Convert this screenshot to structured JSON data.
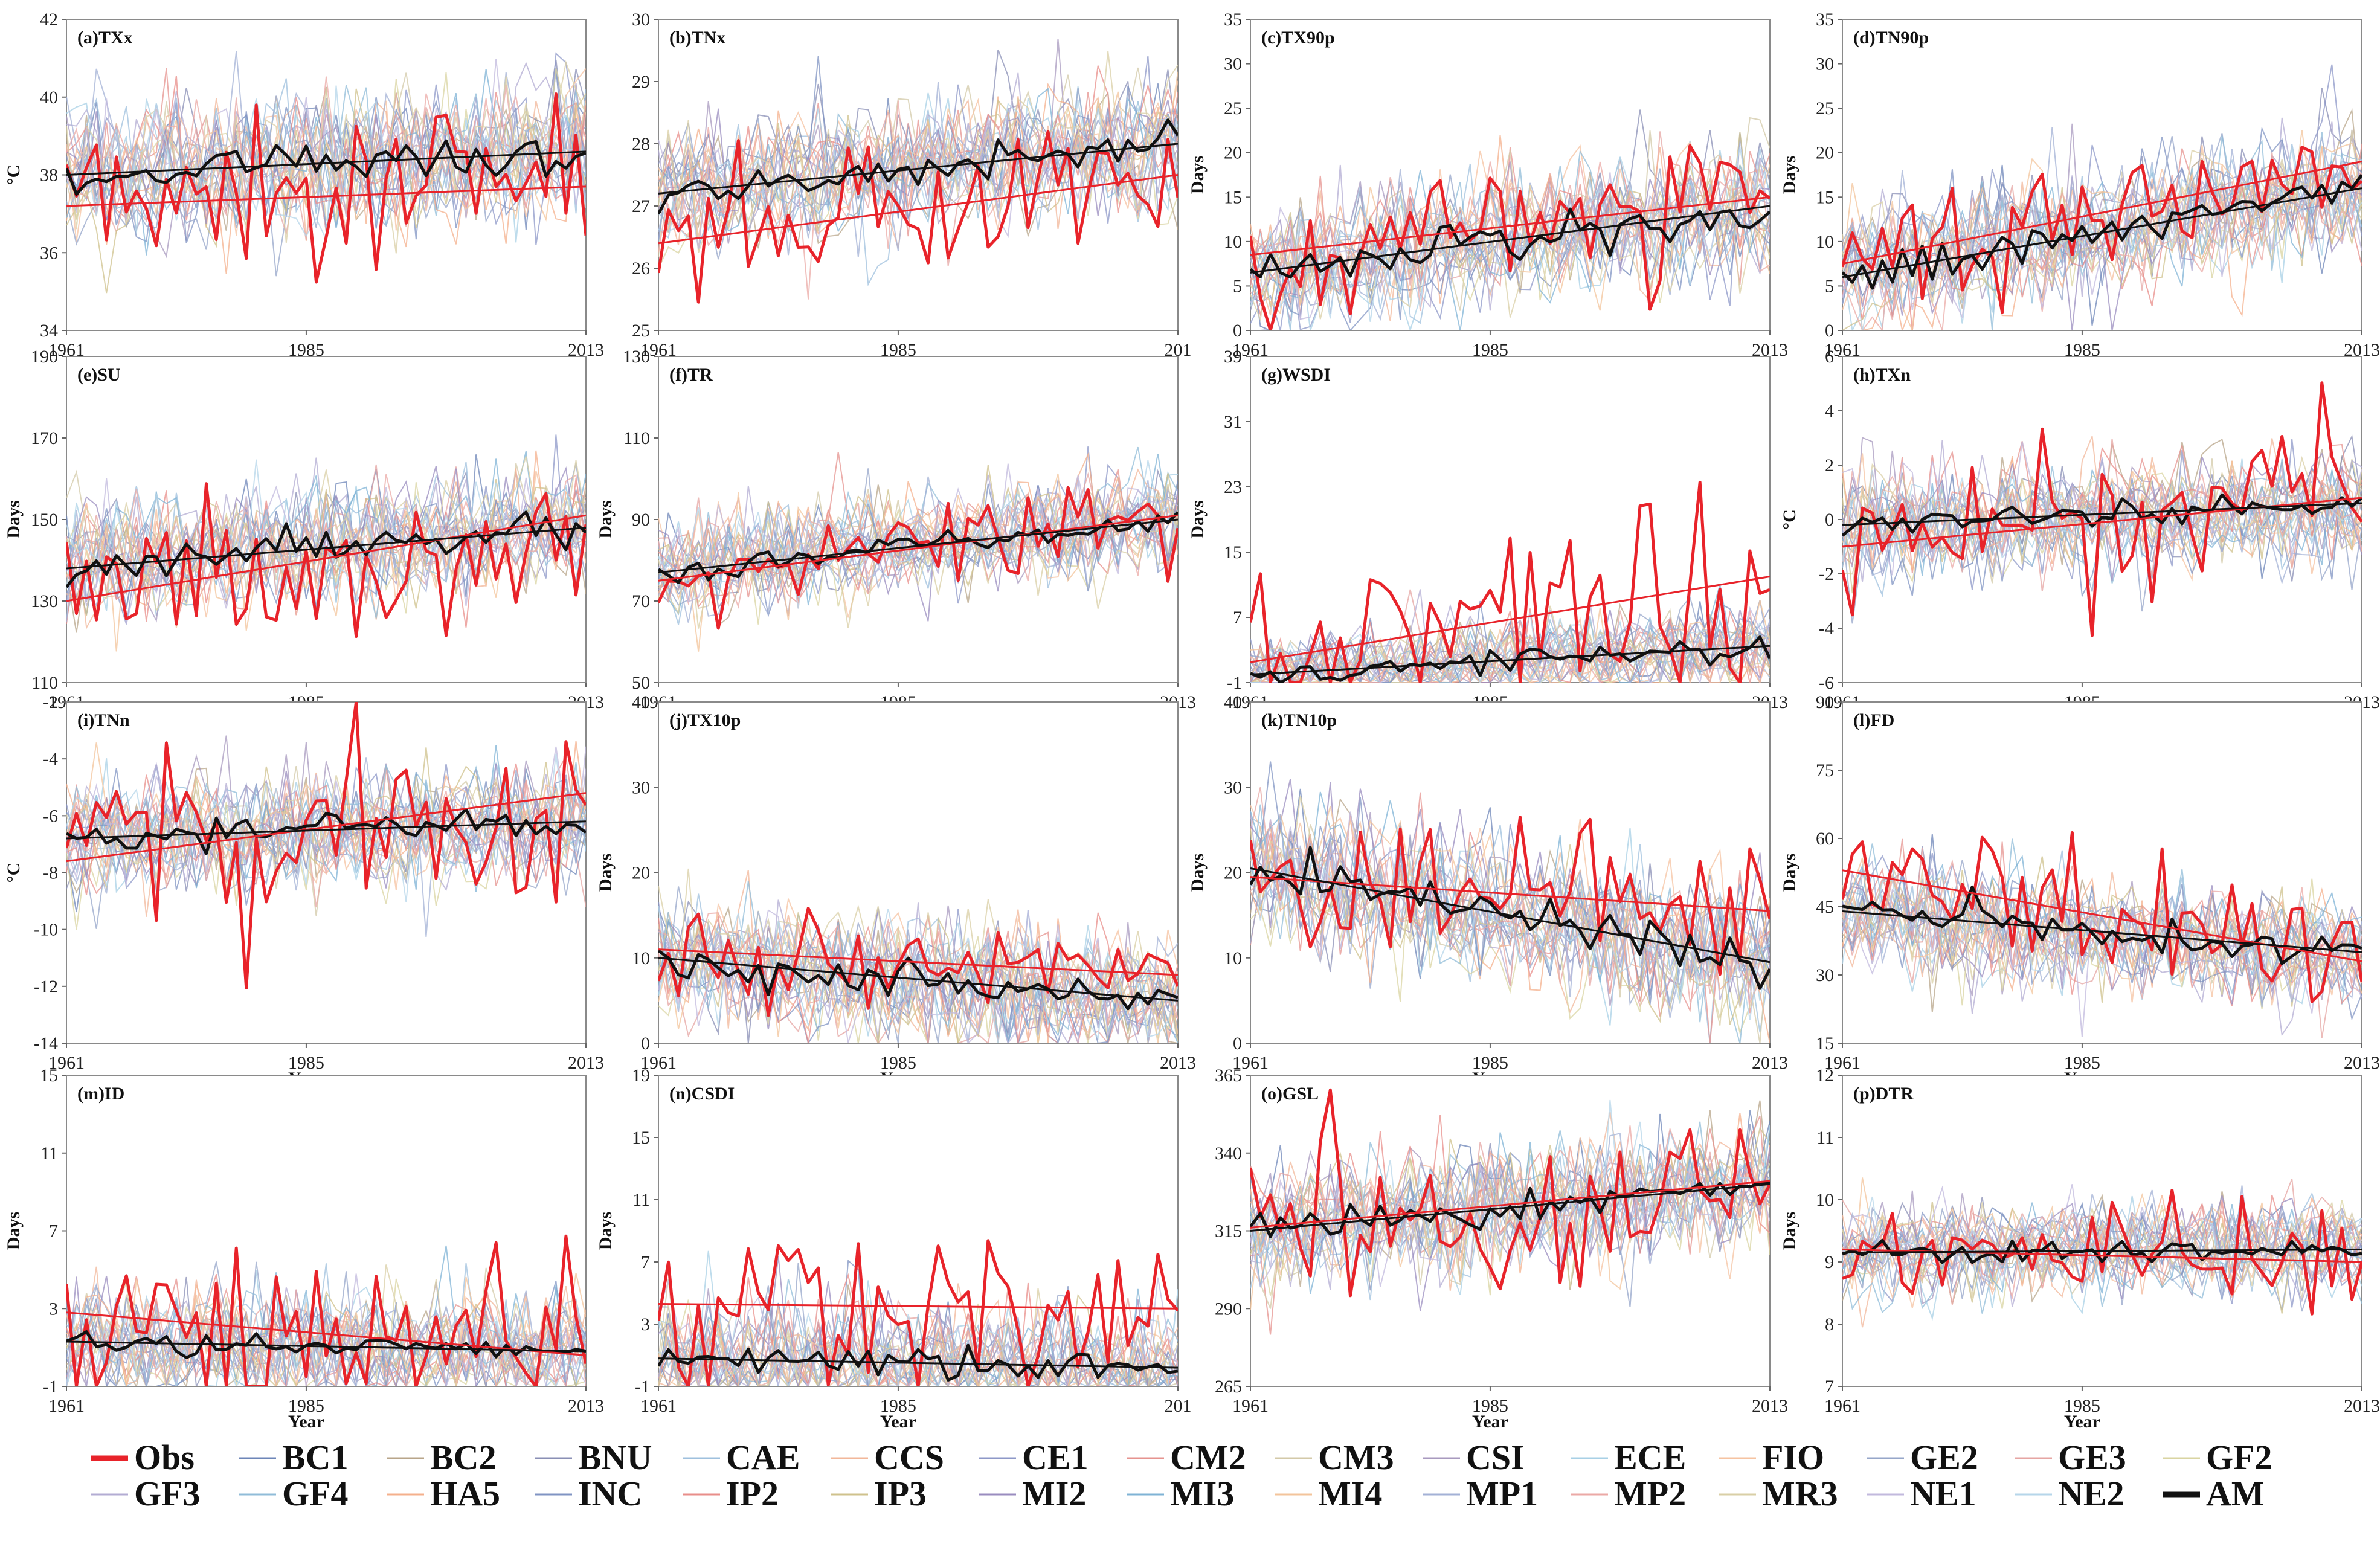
{
  "figure": {
    "x_axis_label": "Year",
    "legend": [
      {
        "name": "Obs",
        "color": "#e8232a",
        "bold": true
      },
      {
        "name": "BC1",
        "color": "#6d86b8"
      },
      {
        "name": "BC2",
        "color": "#b8a58a"
      },
      {
        "name": "BNU",
        "color": "#8a8fb5"
      },
      {
        "name": "CAE",
        "color": "#9fc0de"
      },
      {
        "name": "CCS",
        "color": "#f2b79a"
      },
      {
        "name": "CE1",
        "color": "#8e98c8"
      },
      {
        "name": "CM2",
        "color": "#e6938f"
      },
      {
        "name": "CM3",
        "color": "#d3c9a8"
      },
      {
        "name": "CSI",
        "color": "#a89abf"
      },
      {
        "name": "ECE",
        "color": "#a8d0e6"
      },
      {
        "name": "FIO",
        "color": "#f6c3a1"
      },
      {
        "name": "GE2",
        "color": "#96a6c9"
      },
      {
        "name": "GE3",
        "color": "#e6a5a3"
      },
      {
        "name": "GF2",
        "color": "#d9d4a2"
      },
      {
        "name": "GF3",
        "color": "#b3acd3"
      },
      {
        "name": "GF4",
        "color": "#90bcd8"
      },
      {
        "name": "HA5",
        "color": "#f4b08c"
      },
      {
        "name": "INC",
        "color": "#8094c3"
      },
      {
        "name": "IP2",
        "color": "#e88e8a"
      },
      {
        "name": "IP3",
        "color": "#cfc28c"
      },
      {
        "name": "MI2",
        "color": "#9a8cbf"
      },
      {
        "name": "MI3",
        "color": "#7fb3d5"
      },
      {
        "name": "MI4",
        "color": "#f3c49b"
      },
      {
        "name": "MP1",
        "color": "#a3b1d6"
      },
      {
        "name": "MP2",
        "color": "#eba9a6"
      },
      {
        "name": "MR3",
        "color": "#d9cfa6"
      },
      {
        "name": "NE1",
        "color": "#c2b9dd"
      },
      {
        "name": "NE2",
        "color": "#b6d6ea"
      },
      {
        "name": "AM",
        "color": "#111111",
        "bold": true
      }
    ]
  },
  "chart_data": [
    {
      "type": "line",
      "title": "(a)TXx",
      "ylabel": "°C",
      "ylim": [
        34,
        42
      ],
      "yticks": [
        "34",
        "36",
        "38",
        "40",
        "42"
      ],
      "xticks": [
        "1961",
        "1985",
        "2013"
      ],
      "xlim": [
        1961,
        2013
      ],
      "obs_trend": [
        37.2,
        37.7
      ],
      "am_trend": [
        38.0,
        38.6
      ],
      "obs_mean": 37.5,
      "am_mean": 38.3,
      "obs_sd": 1.0,
      "am_sd": 0.25,
      "model_sd": 0.9
    },
    {
      "type": "line",
      "title": "(b)TNx",
      "ylabel": "",
      "ylim": [
        25,
        30
      ],
      "yticks": [
        "25",
        "26",
        "27",
        "28",
        "29",
        "30"
      ],
      "xticks": [
        "1961",
        "1985",
        "201"
      ],
      "xlim": [
        1961,
        2013
      ],
      "obs_trend": [
        26.4,
        27.5
      ],
      "am_trend": [
        27.2,
        28.0
      ],
      "obs_mean": 27.0,
      "am_mean": 27.6,
      "obs_sd": 0.6,
      "am_sd": 0.15,
      "model_sd": 0.5
    },
    {
      "type": "line",
      "title": "(c)TX90p",
      "ylabel": "Days",
      "ylim": [
        0,
        35
      ],
      "yticks": [
        "0",
        "5",
        "10",
        "15",
        "20",
        "25",
        "30",
        "35"
      ],
      "xticks": [
        "1961",
        "1985",
        "2013"
      ],
      "xlim": [
        1961,
        2013
      ],
      "obs_trend": [
        8.5,
        15.0
      ],
      "am_trend": [
        6.5,
        14.0
      ],
      "obs_mean": 11.5,
      "am_mean": 10.0,
      "obs_sd": 4.0,
      "am_sd": 1.2,
      "model_sd": 3.5
    },
    {
      "type": "line",
      "title": "(d)TN90p",
      "ylabel": "Days",
      "ylim": [
        0,
        35
      ],
      "yticks": [
        "0",
        "5",
        "10",
        "15",
        "20",
        "25",
        "30",
        "35"
      ],
      "xticks": [
        "1961",
        "1985",
        "2013"
      ],
      "xlim": [
        1961,
        2013
      ],
      "obs_trend": [
        7.5,
        19.0
      ],
      "am_trend": [
        6.0,
        16.0
      ],
      "obs_mean": 13.0,
      "am_mean": 11.0,
      "obs_sd": 3.5,
      "am_sd": 1.2,
      "model_sd": 3.5
    },
    {
      "type": "line",
      "title": "(e)SU",
      "ylabel": "Days",
      "ylim": [
        110,
        190
      ],
      "yticks": [
        "110",
        "130",
        "150",
        "170",
        "190"
      ],
      "xticks": [
        "1961",
        "1985",
        "2013"
      ],
      "xlim": [
        1961,
        2013
      ],
      "obs_trend": [
        130.0,
        151.0
      ],
      "am_trend": [
        138.0,
        148.0
      ],
      "obs_mean": 140.0,
      "am_mean": 143.0,
      "obs_sd": 10.0,
      "am_sd": 2.5,
      "model_sd": 7.0
    },
    {
      "type": "line",
      "title": "(f)TR",
      "ylabel": "Days",
      "ylim": [
        50,
        130
      ],
      "yticks": [
        "50",
        "70",
        "90",
        "110",
        "130"
      ],
      "xticks": [
        "1961",
        "1985",
        "2013"
      ],
      "xlim": [
        1961,
        2013
      ],
      "obs_trend": [
        75.0,
        91.0
      ],
      "am_trend": [
        77.0,
        90.0
      ],
      "obs_mean": 83.0,
      "am_mean": 83.0,
      "obs_sd": 5.0,
      "am_sd": 1.5,
      "model_sd": 6.0
    },
    {
      "type": "line",
      "title": "(g)WSDI",
      "ylabel": "Days",
      "ylim": [
        -1,
        39
      ],
      "yticks": [
        "-1",
        "7",
        "15",
        "23",
        "31",
        "39"
      ],
      "xticks": [
        "1961",
        "1985",
        "2013"
      ],
      "xlim": [
        1961,
        2013
      ],
      "obs_trend": [
        1.5,
        12.0
      ],
      "am_trend": [
        0.0,
        3.5
      ],
      "obs_mean": 6.0,
      "am_mean": 1.5,
      "obs_sd": 6.0,
      "am_sd": 0.7,
      "model_sd": 2.5
    },
    {
      "type": "line",
      "title": "(h)TXn",
      "ylabel": "°C",
      "ylim": [
        -6,
        6
      ],
      "yticks": [
        "-6",
        "-4",
        "-2",
        "0",
        "2",
        "4",
        "6"
      ],
      "xticks": [
        "1961",
        "1985",
        "2013"
      ],
      "xlim": [
        1961,
        2013
      ],
      "obs_trend": [
        -1.0,
        0.8
      ],
      "am_trend": [
        -0.2,
        0.6
      ],
      "obs_mean": 0.0,
      "am_mean": 0.2,
      "obs_sd": 1.5,
      "am_sd": 0.25,
      "model_sd": 1.0
    },
    {
      "type": "line",
      "title": "(i)TNn",
      "ylabel": "°C",
      "ylim": [
        -14,
        -2
      ],
      "yticks": [
        "-14",
        "-12",
        "-10",
        "-8",
        "-6",
        "-4",
        "-2"
      ],
      "xticks": [
        "1961",
        "1985",
        "2013"
      ],
      "xlim": [
        1961,
        2013
      ],
      "obs_trend": [
        -7.6,
        -5.2
      ],
      "am_trend": [
        -6.8,
        -6.2
      ],
      "obs_mean": -6.3,
      "am_mean": -6.5,
      "obs_sd": 1.6,
      "am_sd": 0.3,
      "model_sd": 1.0
    },
    {
      "type": "line",
      "title": "(j)TX10p",
      "ylabel": "Days",
      "ylim": [
        0,
        40
      ],
      "yticks": [
        "0",
        "10",
        "20",
        "30",
        "40"
      ],
      "xticks": [
        "1961",
        "1985",
        "2013"
      ],
      "xlim": [
        1961,
        2013
      ],
      "obs_trend": [
        11.0,
        8.0
      ],
      "am_trend": [
        10.0,
        5.0
      ],
      "obs_mean": 10.0,
      "am_mean": 8.0,
      "obs_sd": 2.5,
      "am_sd": 1.2,
      "model_sd": 3.5
    },
    {
      "type": "line",
      "title": "(k)TN10p",
      "ylabel": "Days",
      "ylim": [
        0,
        40
      ],
      "yticks": [
        "0",
        "10",
        "20",
        "30",
        "40"
      ],
      "xticks": [
        "1961",
        "1985",
        "2013"
      ],
      "xlim": [
        1961,
        2013
      ],
      "obs_trend": [
        19.5,
        15.5
      ],
      "am_trend": [
        20.5,
        9.5
      ],
      "obs_mean": 17.5,
      "am_mean": 15.0,
      "obs_sd": 4.0,
      "am_sd": 1.5,
      "model_sd": 4.0
    },
    {
      "type": "line",
      "title": "(l)FD",
      "ylabel": "Days",
      "ylim": [
        15,
        90
      ],
      "yticks": [
        "15",
        "30",
        "45",
        "60",
        "75",
        "90"
      ],
      "xticks": [
        "1961",
        "1985",
        "2013"
      ],
      "xlim": [
        1961,
        2013
      ],
      "obs_trend": [
        53.0,
        33.0
      ],
      "am_trend": [
        44.0,
        35.0
      ],
      "obs_mean": 43.0,
      "am_mean": 40.0,
      "obs_sd": 8.0,
      "am_sd": 2.0,
      "model_sd": 6.0
    },
    {
      "type": "line",
      "title": "(m)ID",
      "ylabel": "Days",
      "ylim": [
        -1,
        15
      ],
      "yticks": [
        "-1",
        "3",
        "7",
        "11",
        "15"
      ],
      "xticks": [
        "1961",
        "1985",
        "2013"
      ],
      "xlim": [
        1961,
        2013
      ],
      "obs_trend": [
        2.8,
        0.6
      ],
      "am_trend": [
        1.3,
        0.8
      ],
      "obs_mean": 1.5,
      "am_mean": 1.0,
      "obs_sd": 2.5,
      "am_sd": 0.3,
      "model_sd": 1.5
    },
    {
      "type": "line",
      "title": "(n)CSDI",
      "ylabel": "Days",
      "ylim": [
        -1,
        19
      ],
      "yticks": [
        "-1",
        "3",
        "7",
        "11",
        "15",
        "19"
      ],
      "xticks": [
        "1961",
        "1985",
        "201"
      ],
      "xlim": [
        1961,
        2013
      ],
      "obs_trend": [
        4.3,
        4.0
      ],
      "am_trend": [
        0.8,
        0.2
      ],
      "obs_mean": 4.2,
      "am_mean": 0.5,
      "obs_sd": 3.0,
      "am_sd": 0.5,
      "model_sd": 2.0
    },
    {
      "type": "line",
      "title": "(o)GSL",
      "ylabel": "",
      "ylim": [
        265,
        365
      ],
      "yticks": [
        "265",
        "290",
        "315",
        "340",
        "365"
      ],
      "xticks": [
        "1961",
        "1985",
        "2013"
      ],
      "xlim": [
        1961,
        2013
      ],
      "obs_trend": [
        316.0,
        331.0
      ],
      "am_trend": [
        315.0,
        330.0
      ],
      "obs_mean": 323.0,
      "am_mean": 322.0,
      "obs_sd": 12.0,
      "am_sd": 3.0,
      "model_sd": 10.0
    },
    {
      "type": "line",
      "title": "(p)DTR",
      "ylabel": "Days",
      "ylim": [
        7,
        12
      ],
      "yticks": [
        "7",
        "8",
        "9",
        "10",
        "11",
        "12"
      ],
      "xticks": [
        "1961",
        "1985",
        "2013"
      ],
      "xlim": [
        1961,
        2013
      ],
      "obs_trend": [
        9.2,
        9.0
      ],
      "am_trend": [
        9.15,
        9.2
      ],
      "obs_mean": 9.1,
      "am_mean": 9.15,
      "obs_sd": 0.45,
      "am_sd": 0.08,
      "model_sd": 0.35
    }
  ]
}
